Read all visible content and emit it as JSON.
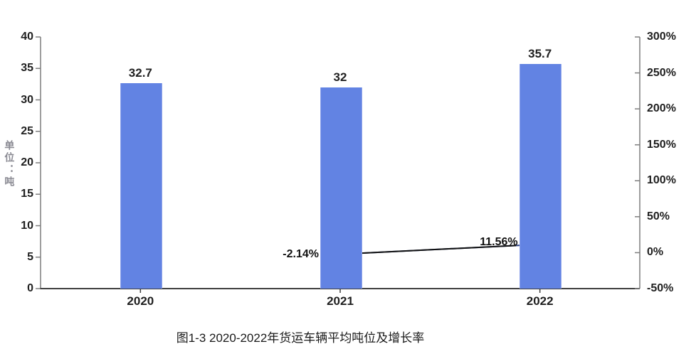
{
  "figure": {
    "caption": "图1-3 2020-2022年货运车辆平均吨位及增长率"
  },
  "chart_data": {
    "type": "combo-bar-line",
    "categories": [
      "2020",
      "2021",
      "2022"
    ],
    "series": [
      {
        "name": "平均吨位",
        "type": "bar",
        "axis": "left",
        "values": [
          32.7,
          32,
          35.7
        ],
        "value_labels": [
          "32.7",
          "32",
          "35.7"
        ],
        "color": "#6283e3"
      },
      {
        "name": "增长率",
        "type": "line",
        "axis": "right",
        "values": [
          null,
          -2.14,
          11.56
        ],
        "value_labels": [
          null,
          "-2.14%",
          "11.56%"
        ],
        "line_color": "#111111",
        "marker_stroke_color": "#2e4383",
        "marker_fill_color": "#8099e8"
      }
    ],
    "left_axis": {
      "title": "单位：吨",
      "min": 0,
      "max": 40,
      "tick_values": [
        40,
        35,
        30,
        25,
        20,
        15,
        10,
        5,
        0
      ],
      "tick_labels": [
        "40",
        "35",
        "30",
        "25",
        "20",
        "15",
        "10",
        "5",
        "0"
      ]
    },
    "right_axis": {
      "min": -50,
      "max": 300,
      "tick_values": [
        300,
        250,
        200,
        150,
        100,
        50,
        0,
        -50
      ],
      "tick_labels": [
        "300%",
        "250%",
        "200%",
        "150%",
        "100%",
        "50%",
        "0%",
        "-50%"
      ]
    },
    "grid": false,
    "legend": "none",
    "colors": {
      "axis_line": "#7f7f7f",
      "baseline": "#3f3f3f",
      "text": "#1f1f1f",
      "axis_title_text": "#8a8a93"
    }
  }
}
